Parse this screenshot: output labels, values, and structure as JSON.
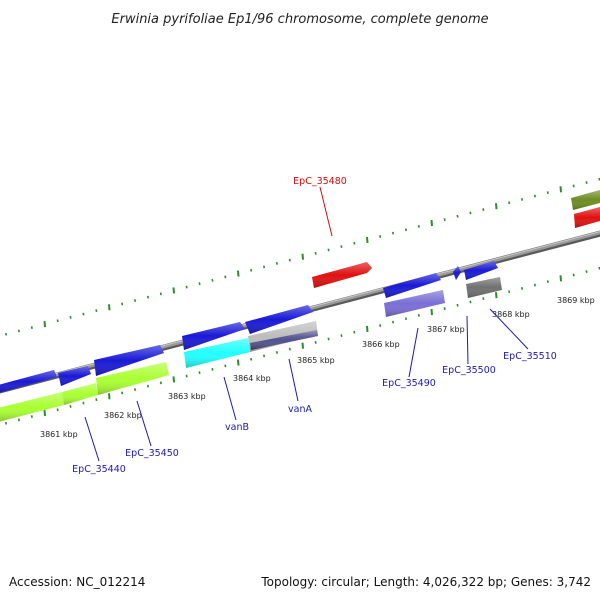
{
  "title": "Erwinia pyrifoliae Ep1/96 chromosome, complete genome",
  "footer": {
    "accession": "Accession: NC_012214",
    "topology": "Topology: circular; Length: 4,026,322 bp; Genes: 3,742"
  },
  "colors": {
    "backbone": "#8c8c8c",
    "tick": "#2e8b2e",
    "label_blue": "#1c1ca8",
    "label_red": "#cc1010",
    "cds_blue": "#1a1ad6",
    "cds_green": "#aaff33",
    "cds_cyan": "#22ffff",
    "cds_lavender": "#7a6ed6",
    "cds_red": "#e01010",
    "cds_gray": "#707070",
    "cds_olive": "#6f8c22",
    "cds_silver": "#bdbdbd",
    "cds_navy": "#4a4a8a"
  },
  "ticks": [
    "3861 kbp",
    "3862 kbp",
    "3863 kbp",
    "3864 kbp",
    "3865 kbp",
    "3866 kbp",
    "3867 kbp",
    "3868 kbp",
    "3869 kbp"
  ],
  "genes": {
    "epc_35480": "EpC_35480",
    "epc_35440": "EpC_35440",
    "epc_35450": "EpC_35450",
    "vanb": "vanB",
    "vana": "vanA",
    "epc_35490": "EpC_35490",
    "epc_35500": "EpC_35500",
    "epc_35510": "EpC_35510"
  }
}
